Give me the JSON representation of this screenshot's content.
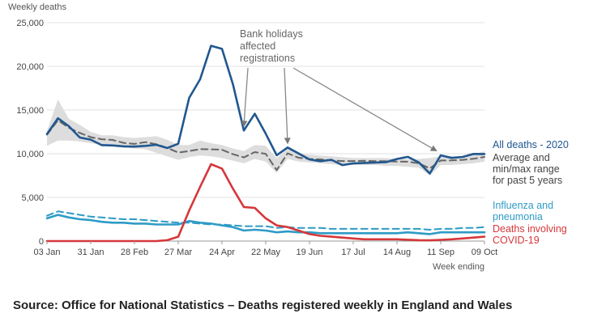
{
  "chart_data": {
    "type": "line",
    "title": "",
    "ylabel": "Weekly deaths",
    "xlabel": "Week ending",
    "ylim": [
      0,
      25000
    ],
    "yticks": [
      0,
      5000,
      10000,
      15000,
      20000,
      25000
    ],
    "ytick_labels": [
      "0",
      "5,000",
      "10,000",
      "15,000",
      "20,000",
      "25,000"
    ],
    "xtick_labels": [
      "03 Jan",
      "31 Jan",
      "28 Feb",
      "27 Mar",
      "24 Apr",
      "22 May",
      "19 Jun",
      "17 Jul",
      "14 Aug",
      "11 Sep",
      "09 Oct"
    ],
    "xtick_weeks": [
      1,
      5,
      9,
      13,
      17,
      21,
      25,
      29,
      33,
      37,
      41
    ],
    "weeks": [
      1,
      2,
      3,
      4,
      5,
      6,
      7,
      8,
      9,
      10,
      11,
      12,
      13,
      14,
      15,
      16,
      17,
      18,
      19,
      20,
      21,
      22,
      23,
      24,
      25,
      26,
      27,
      28,
      29,
      30,
      31,
      32,
      33,
      34,
      35,
      36,
      37,
      38,
      39,
      40,
      41
    ],
    "series": [
      {
        "name": "All deaths - 2020",
        "color": "#20578f",
        "style": "solid",
        "values": [
          12254,
          14058,
          13144,
          11856,
          11612,
          10986,
          10944,
          10841,
          10816,
          10895,
          11019,
          10645,
          11141,
          16387,
          18516,
          22351,
          21997,
          17953,
          12657,
          14573,
          12288,
          9824,
          10709,
          10031,
          9339,
          9140,
          9305,
          8690,
          8891,
          8946,
          8986,
          9032,
          9400,
          9635,
          9004,
          7739,
          9811,
          9523,
          9634,
          9969,
          9964
        ]
      },
      {
        "name": "Average (past 5 years)",
        "color": "#666666",
        "style": "dashed",
        "values": [
          12175,
          13822,
          12964,
          12375,
          11893,
          11658,
          11576,
          11238,
          11119,
          11326,
          11085,
          10658,
          10130,
          10305,
          10520,
          10497,
          10458,
          9941,
          9576,
          10189,
          9981,
          8118,
          10049,
          9533,
          9394,
          9355,
          9229,
          9154,
          9160,
          9185,
          9136,
          9145,
          9098,
          9080,
          8902,
          8311,
          9226,
          9233,
          9292,
          9419,
          9627
        ]
      },
      {
        "name": "Max (past 5 years)",
        "color": "#dddddd",
        "style": "band-upper",
        "values": [
          12600,
          16200,
          14000,
          13300,
          12500,
          12100,
          12100,
          11900,
          11800,
          11900,
          12000,
          11600,
          11000,
          11000,
          11500,
          11200,
          11000,
          10600,
          10300,
          11000,
          10900,
          9500,
          10600,
          10000,
          9900,
          9800,
          9700,
          9600,
          9500,
          9500,
          9500,
          9500,
          9400,
          9400,
          9400,
          9500,
          9700,
          9700,
          9700,
          9900,
          10300
        ]
      },
      {
        "name": "Min (past 5 years)",
        "color": "#dddddd",
        "style": "band-lower",
        "values": [
          10900,
          11500,
          11500,
          11400,
          11200,
          11000,
          10900,
          10700,
          10600,
          10500,
          10100,
          9700,
          9300,
          9600,
          9800,
          9700,
          9500,
          9200,
          8900,
          9400,
          9100,
          7800,
          9400,
          9100,
          9000,
          8900,
          8800,
          8700,
          8700,
          8700,
          8700,
          8600,
          8600,
          8500,
          8400,
          7500,
          8700,
          8700,
          8800,
          8900,
          9100
        ]
      },
      {
        "name": "Influenza and pneumonia - 2020",
        "color": "#2e9bc6",
        "style": "solid",
        "values": [
          2600,
          3000,
          2700,
          2500,
          2400,
          2200,
          2100,
          2100,
          2000,
          2000,
          1900,
          1900,
          1900,
          2300,
          2100,
          2000,
          1800,
          1600,
          1200,
          1300,
          1200,
          1000,
          1100,
          1000,
          1000,
          900,
          900,
          900,
          900,
          900,
          900,
          900,
          900,
          1000,
          900,
          800,
          1000,
          1000,
          1000,
          1000,
          1000
        ]
      },
      {
        "name": "Influenza and pneumonia - 5 year average",
        "color": "#2e9bc6",
        "style": "dashed",
        "values": [
          2900,
          3400,
          3200,
          3000,
          2800,
          2700,
          2600,
          2500,
          2500,
          2400,
          2300,
          2200,
          2100,
          2100,
          2000,
          1900,
          1900,
          1800,
          1700,
          1700,
          1700,
          1500,
          1600,
          1500,
          1500,
          1500,
          1400,
          1400,
          1400,
          1400,
          1400,
          1400,
          1400,
          1400,
          1400,
          1300,
          1400,
          1400,
          1500,
          1500,
          1600
        ]
      },
      {
        "name": "Deaths involving COVID-19",
        "color": "#d6373b",
        "style": "solid",
        "values": [
          0,
          0,
          0,
          0,
          0,
          0,
          0,
          0,
          0,
          0,
          0,
          100,
          500,
          3500,
          6200,
          8800,
          8300,
          6000,
          3900,
          3800,
          2600,
          1800,
          1600,
          1200,
          800,
          600,
          500,
          400,
          300,
          200,
          200,
          200,
          200,
          150,
          100,
          80,
          140,
          200,
          300,
          400,
          500
        ]
      }
    ],
    "legend": [
      {
        "label": "All deaths - 2020",
        "color": "#20578f"
      },
      {
        "label": "Average and min/max range for past 5 years",
        "lines": [
          "Average and",
          "min/max range",
          "for past 5 years"
        ],
        "color": "#444444"
      },
      {
        "label": "Influenza and pneumonia",
        "lines": [
          "Influenza and",
          "pneumonia"
        ],
        "color": "#2e9bc6"
      },
      {
        "label": "Deaths involving COVID-19",
        "lines": [
          "Deaths involving",
          "COVID-19"
        ],
        "color": "#d6373b"
      }
    ],
    "annotation": {
      "lines": [
        "Bank holidays",
        "affected",
        "registrations"
      ],
      "arrow_weeks": [
        19,
        23,
        37
      ]
    }
  },
  "source": "Source: Office for National Statistics – Deaths registered weekly in England and Wales"
}
